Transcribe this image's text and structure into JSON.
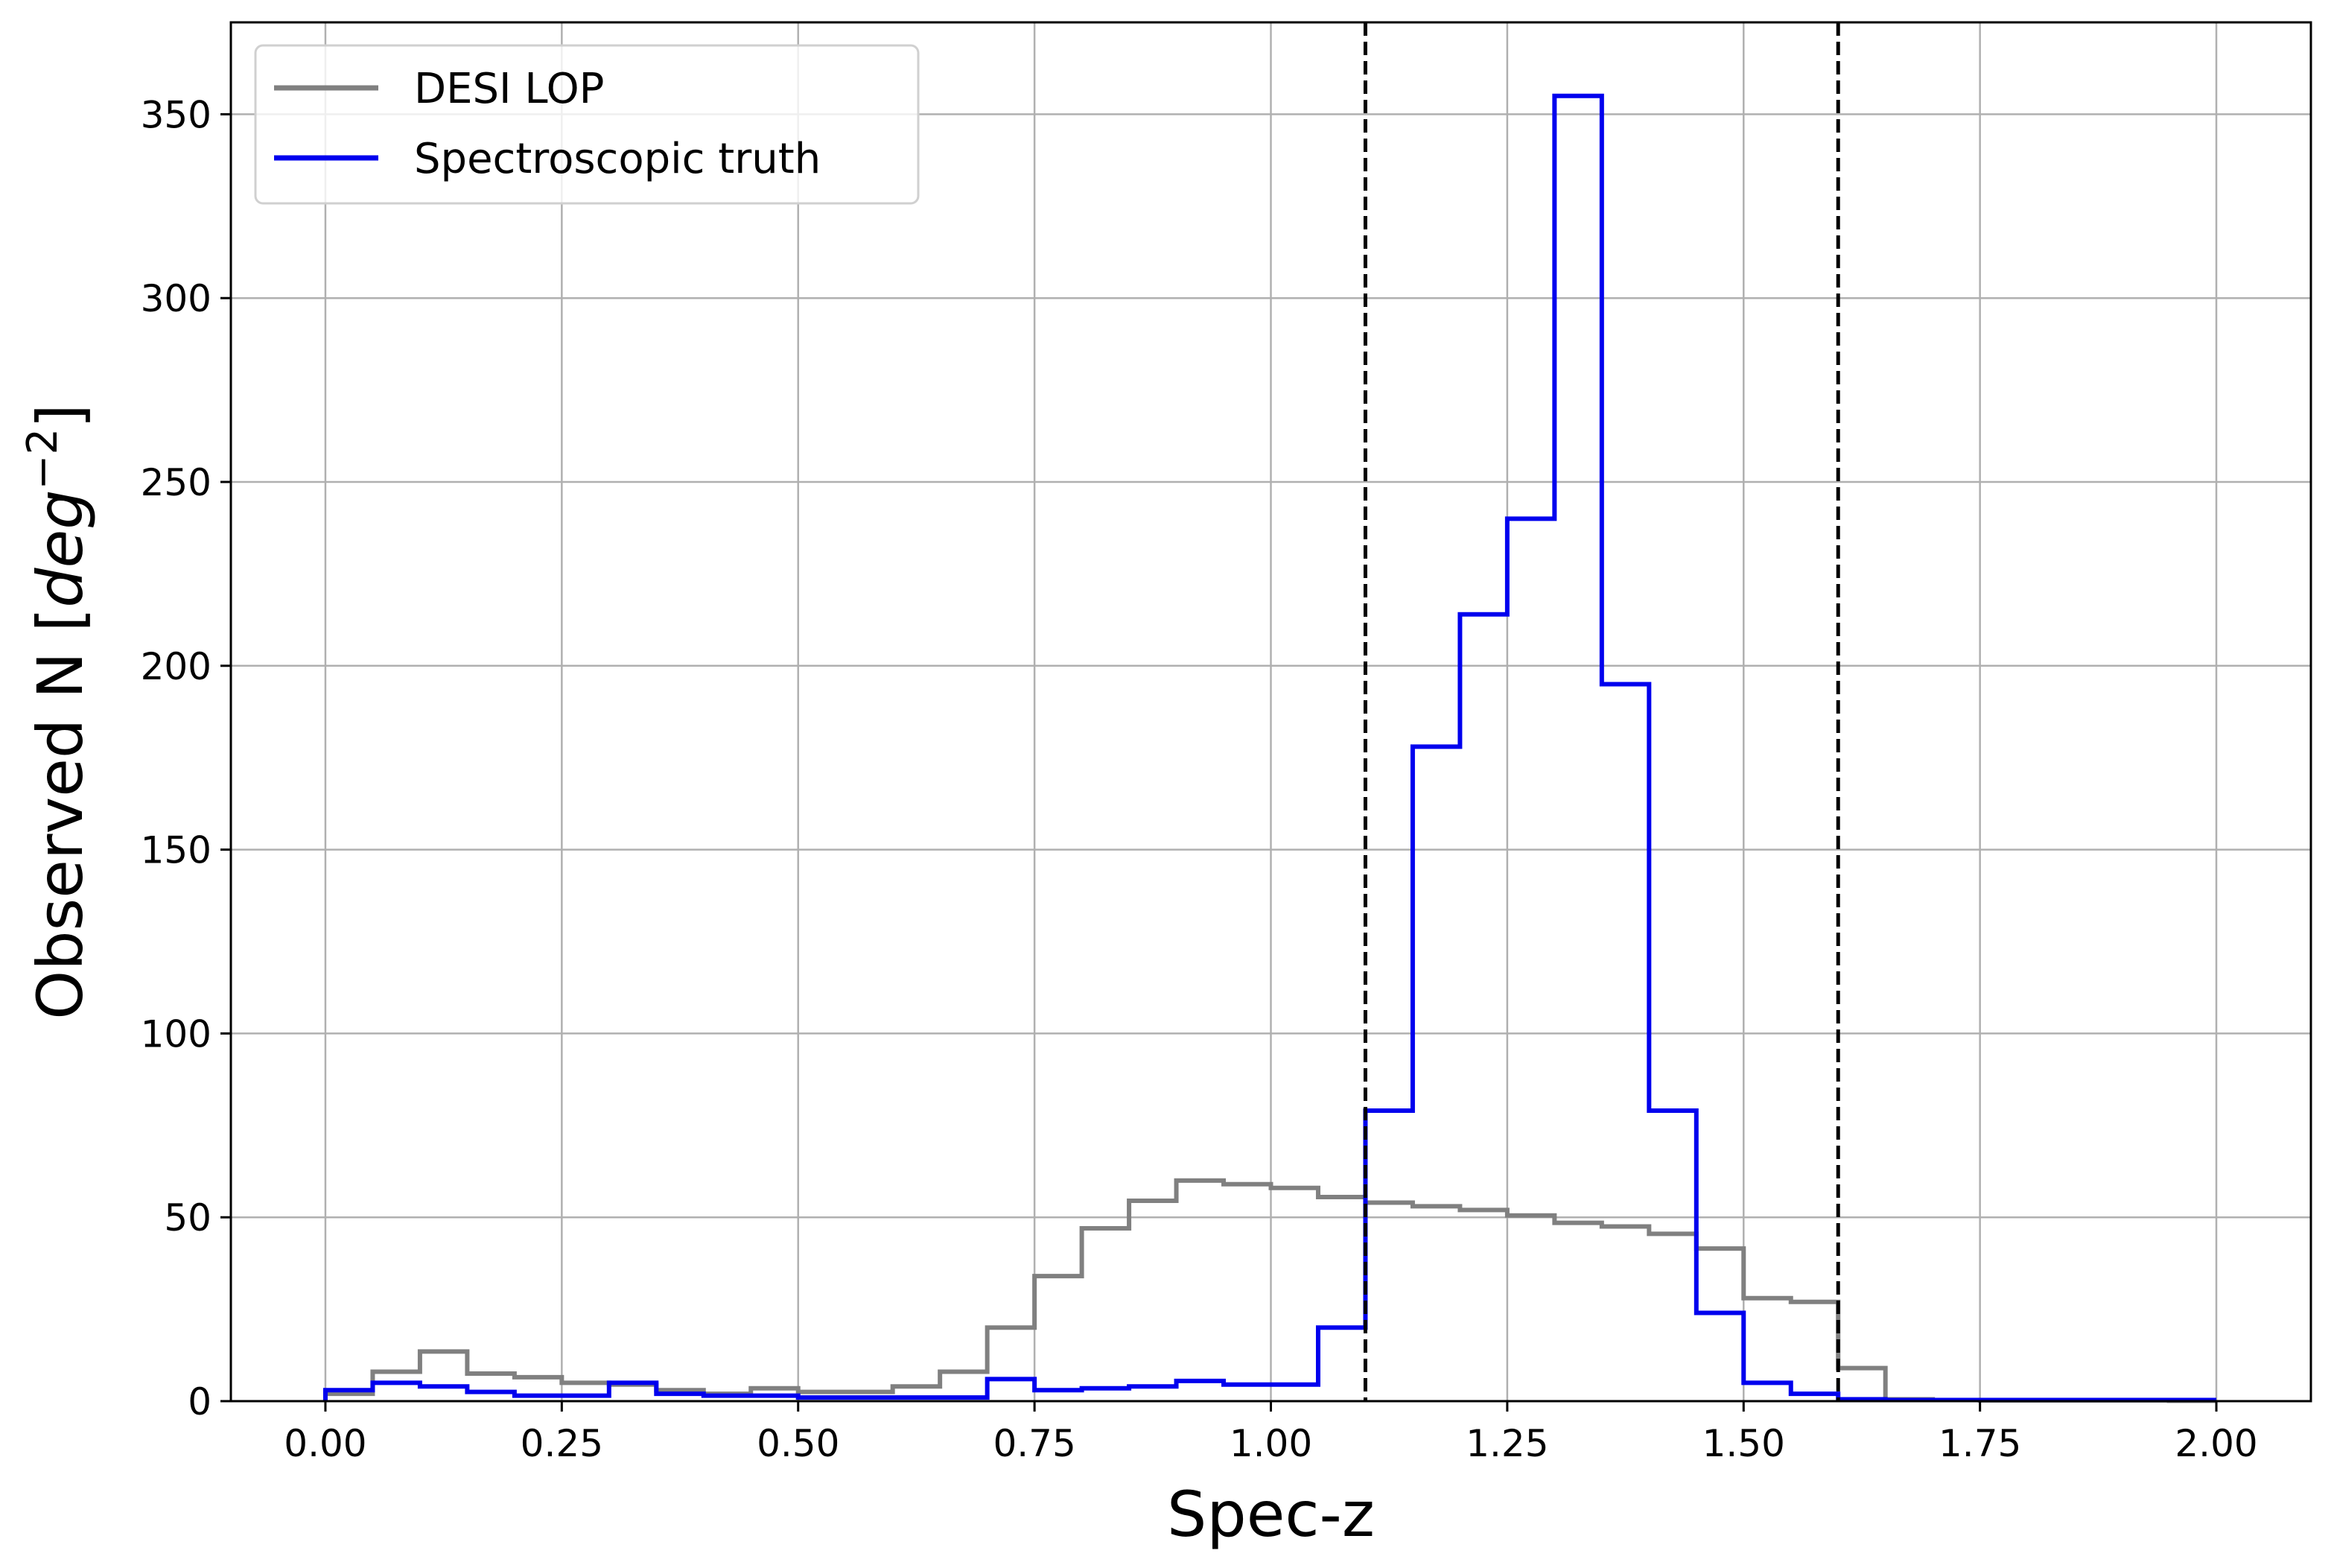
{
  "chart_data": {
    "type": "histogram-step",
    "xlabel": "Spec-z",
    "ylabel_prefix": "Observed N [",
    "ylabel_unit_base": "deg",
    "ylabel_unit_exp": "−2",
    "ylabel_suffix": "]",
    "xlim": [
      -0.1,
      2.1
    ],
    "ylim": [
      0,
      375
    ],
    "x_ticks": [
      "0.00",
      "0.25",
      "0.50",
      "0.75",
      "1.00",
      "1.25",
      "1.50",
      "1.75",
      "2.00"
    ],
    "x_tick_values": [
      0,
      0.25,
      0.5,
      0.75,
      1.0,
      1.25,
      1.5,
      1.75,
      2.0
    ],
    "y_ticks": [
      "0",
      "50",
      "100",
      "150",
      "200",
      "250",
      "300",
      "350"
    ],
    "y_tick_values": [
      0,
      50,
      100,
      150,
      200,
      250,
      300,
      350
    ],
    "grid": true,
    "legend_placement": "top-left",
    "bin_edges": [
      0,
      0.05,
      0.1,
      0.15,
      0.2,
      0.25,
      0.3,
      0.35,
      0.4,
      0.45,
      0.5,
      0.55,
      0.6,
      0.65,
      0.7,
      0.75,
      0.8,
      0.85,
      0.9,
      0.95,
      1.0,
      1.05,
      1.1,
      1.15,
      1.2,
      1.25,
      1.3,
      1.35,
      1.4,
      1.45,
      1.5,
      1.55,
      1.6,
      1.65,
      1.7,
      1.75,
      1.8,
      1.85,
      1.9,
      1.95,
      2.0
    ],
    "series": [
      {
        "name": "DESI LOP",
        "color": "#808080",
        "values": [
          2,
          8,
          13.5,
          7.5,
          6.5,
          5,
          4.5,
          3,
          2,
          3.5,
          2.5,
          2.5,
          4,
          8,
          20,
          34,
          47,
          54.5,
          60,
          59,
          58,
          55.5,
          54,
          53,
          52,
          50.5,
          48.5,
          47.5,
          45.5,
          41.5,
          28,
          27,
          9,
          0.5,
          0.3,
          0.2,
          0.2,
          0.2,
          0.2,
          0.1
        ]
      },
      {
        "name": "Spectroscopic truth",
        "color": "#0000ee",
        "values": [
          3,
          5,
          4,
          2.5,
          1.5,
          1.5,
          5,
          2,
          1.5,
          1.5,
          1,
          1,
          1,
          1,
          6,
          3,
          3.5,
          4,
          5.5,
          4.5,
          4.5,
          20,
          79,
          178,
          214,
          240,
          355,
          195,
          79,
          24,
          5,
          2,
          0.5,
          0.3,
          0.3,
          0.3,
          0.3,
          0.3,
          0.3,
          0.3
        ]
      }
    ],
    "vlines": [
      1.1,
      1.6
    ],
    "vline_color": "#000000"
  }
}
